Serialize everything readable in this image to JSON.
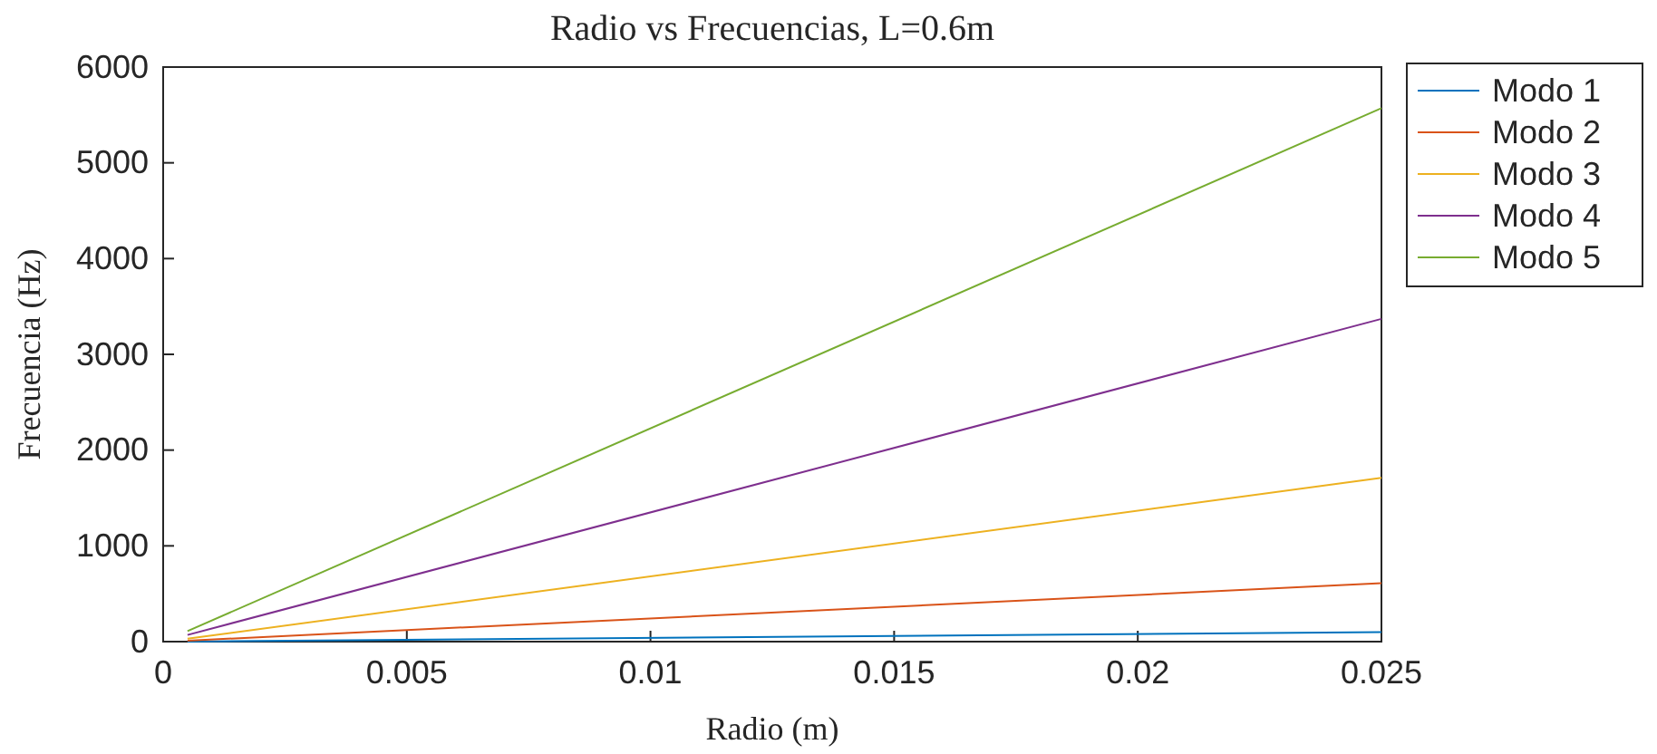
{
  "chart_data": {
    "type": "line",
    "title": "Radio vs Frecuencias, L=0.6m",
    "xlabel": "Radio (m)",
    "ylabel": "Frecuencia (Hz)",
    "x": [
      0.0005,
      0.025
    ],
    "series": [
      {
        "name": "Modo 1",
        "color": "#0072bd",
        "values": [
          0,
          100
        ]
      },
      {
        "name": "Modo 2",
        "color": "#d95319",
        "values": [
          10,
          610
        ]
      },
      {
        "name": "Modo 3",
        "color": "#edb120",
        "values": [
          30,
          1710
        ]
      },
      {
        "name": "Modo 4",
        "color": "#7e2f8e",
        "values": [
          70,
          3370
        ]
      },
      {
        "name": "Modo 5",
        "color": "#77ac30",
        "values": [
          110,
          5570
        ]
      }
    ],
    "xlim": [
      0,
      0.025
    ],
    "xticks": [
      0,
      0.005,
      0.01,
      0.015,
      0.02,
      0.025
    ],
    "ylim": [
      0,
      6000
    ],
    "yticks": [
      0,
      1000,
      2000,
      3000,
      4000,
      5000,
      6000
    ],
    "grid": false,
    "legend": "top right",
    "line_style": "solid",
    "marker": "none"
  }
}
